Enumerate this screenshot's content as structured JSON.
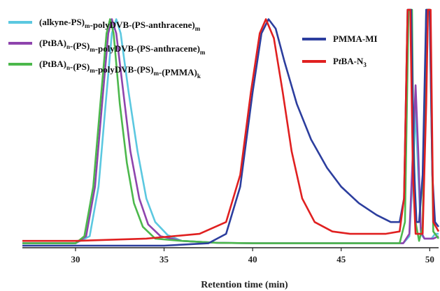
{
  "chart_data": {
    "type": "line",
    "xlabel": "Retention time (min)",
    "ylabel": "",
    "xlim": [
      27,
      50.5
    ],
    "ylim": [
      0,
      1.0
    ],
    "x_ticks": [
      "30",
      "35",
      "40",
      "45",
      "50"
    ],
    "x_tick_values": [
      30,
      35,
      40,
      45,
      50
    ],
    "grid": false,
    "legend_position": "top",
    "series": [
      {
        "name": "(alkyne-PS)m-polyDVB-(PS-anthracene)m",
        "legend_parts": [
          [
            "(alkyne-PS)",
            ""
          ],
          [
            "m",
            "sub"
          ],
          [
            "-polyDVB-(PS-anthracene)",
            ""
          ],
          [
            "m",
            "sub"
          ]
        ],
        "color": "#5bc8e0",
        "points": [
          [
            27,
            0.01
          ],
          [
            30,
            0.01
          ],
          [
            30.8,
            0.04
          ],
          [
            31.3,
            0.25
          ],
          [
            31.7,
            0.6
          ],
          [
            32.05,
            0.9
          ],
          [
            32.3,
            0.96
          ],
          [
            32.55,
            0.9
          ],
          [
            33,
            0.65
          ],
          [
            33.5,
            0.4
          ],
          [
            34,
            0.2
          ],
          [
            34.5,
            0.1
          ],
          [
            35.2,
            0.045
          ],
          [
            36,
            0.02
          ],
          [
            38,
            0.012
          ],
          [
            40,
            0.01
          ],
          [
            45,
            0.01
          ],
          [
            48.5,
            0.01
          ],
          [
            48.85,
            0.04
          ],
          [
            49.05,
            0.3
          ],
          [
            49.2,
            0.58
          ],
          [
            49.35,
            0.3
          ],
          [
            49.5,
            0.05
          ],
          [
            49.7,
            0.03
          ],
          [
            50.1,
            0.03
          ],
          [
            50.3,
            0.05
          ],
          [
            50.5,
            0.05
          ]
        ]
      },
      {
        "name": "(PtBA)n-(PS)m-polyDVB-(PS-anthracene)m",
        "legend_parts": [
          [
            "(PtBA)",
            ""
          ],
          [
            "n",
            "sub"
          ],
          [
            "-(PS)",
            ""
          ],
          [
            "m",
            "sub"
          ],
          [
            "-polyDVB-(PS-anthracene)",
            ""
          ],
          [
            "m",
            "sub"
          ]
        ],
        "color": "#8e44ad",
        "points": [
          [
            27,
            0.01
          ],
          [
            30,
            0.01
          ],
          [
            30.6,
            0.04
          ],
          [
            31.1,
            0.25
          ],
          [
            31.5,
            0.6
          ],
          [
            31.85,
            0.9
          ],
          [
            32.05,
            0.96
          ],
          [
            32.3,
            0.9
          ],
          [
            32.7,
            0.65
          ],
          [
            33.1,
            0.4
          ],
          [
            33.6,
            0.2
          ],
          [
            34.1,
            0.09
          ],
          [
            34.8,
            0.04
          ],
          [
            36,
            0.02
          ],
          [
            38,
            0.012
          ],
          [
            40,
            0.01
          ],
          [
            45,
            0.01
          ],
          [
            48.5,
            0.01
          ],
          [
            48.85,
            0.05
          ],
          [
            49.05,
            0.4
          ],
          [
            49.2,
            0.68
          ],
          [
            49.35,
            0.4
          ],
          [
            49.5,
            0.06
          ],
          [
            49.7,
            0.03
          ],
          [
            50.2,
            0.03
          ],
          [
            50.5,
            0.04
          ]
        ]
      },
      {
        "name": "(PtBA)n-(PS)m-polyDVB-(PS)m-(PMMA)k",
        "legend_parts": [
          [
            "(PtBA)",
            ""
          ],
          [
            "n",
            "sub"
          ],
          [
            "-(PS)",
            ""
          ],
          [
            "m",
            "sub"
          ],
          [
            "-polyDVB-(PS)",
            ""
          ],
          [
            "m",
            "sub"
          ],
          [
            "-(PMMA)",
            ""
          ],
          [
            "k",
            "sub"
          ]
        ],
        "color": "#4cb84c",
        "points": [
          [
            27,
            0.01
          ],
          [
            30,
            0.01
          ],
          [
            30.5,
            0.04
          ],
          [
            31,
            0.25
          ],
          [
            31.4,
            0.6
          ],
          [
            31.75,
            0.9
          ],
          [
            31.95,
            0.96
          ],
          [
            32.15,
            0.9
          ],
          [
            32.5,
            0.6
          ],
          [
            32.9,
            0.35
          ],
          [
            33.3,
            0.18
          ],
          [
            33.8,
            0.08
          ],
          [
            34.5,
            0.03
          ],
          [
            36,
            0.02
          ],
          [
            38,
            0.012
          ],
          [
            40,
            0.01
          ],
          [
            45,
            0.01
          ],
          [
            48.3,
            0.01
          ],
          [
            48.6,
            0.1
          ],
          [
            48.8,
            1.0
          ],
          [
            49.0,
            1.0
          ],
          [
            49.05,
            0.6
          ],
          [
            49.2,
            0.1
          ],
          [
            49.4,
            0.02
          ],
          [
            49.6,
            0.08
          ],
          [
            49.8,
            1.0
          ],
          [
            50.0,
            1.0
          ],
          [
            50.2,
            0.06
          ],
          [
            50.5,
            0.03
          ]
        ]
      },
      {
        "name": "PMMA-MI",
        "legend_parts": [
          [
            "PMMA-MI",
            ""
          ]
        ],
        "color": "#2c3e9e",
        "points": [
          [
            27,
            0.0
          ],
          [
            35,
            0.0
          ],
          [
            37.5,
            0.01
          ],
          [
            38.5,
            0.05
          ],
          [
            39.3,
            0.25
          ],
          [
            40,
            0.65
          ],
          [
            40.5,
            0.9
          ],
          [
            40.9,
            0.96
          ],
          [
            41.3,
            0.92
          ],
          [
            41.8,
            0.78
          ],
          [
            42.5,
            0.6
          ],
          [
            43.3,
            0.45
          ],
          [
            44.2,
            0.33
          ],
          [
            45,
            0.25
          ],
          [
            46,
            0.18
          ],
          [
            47,
            0.13
          ],
          [
            47.8,
            0.1
          ],
          [
            48.3,
            0.1
          ],
          [
            48.55,
            0.2
          ],
          [
            48.75,
            1.0
          ],
          [
            48.95,
            1.0
          ],
          [
            49.1,
            0.35
          ],
          [
            49.25,
            0.1
          ],
          [
            49.4,
            0.1
          ],
          [
            49.6,
            0.3
          ],
          [
            49.8,
            1.0
          ],
          [
            50.0,
            1.0
          ],
          [
            50.15,
            0.3
          ],
          [
            50.3,
            0.1
          ],
          [
            50.5,
            0.08
          ]
        ]
      },
      {
        "name": "PtBA-N3",
        "legend_parts": [
          [
            "P",
            ""
          ],
          [
            "t",
            "ital"
          ],
          [
            "BA-N",
            ""
          ],
          [
            "3",
            "sub"
          ]
        ],
        "color": "#e02020",
        "points": [
          [
            27,
            0.02
          ],
          [
            30,
            0.02
          ],
          [
            34,
            0.03
          ],
          [
            37,
            0.05
          ],
          [
            38.5,
            0.1
          ],
          [
            39.3,
            0.3
          ],
          [
            39.9,
            0.65
          ],
          [
            40.4,
            0.9
          ],
          [
            40.75,
            0.96
          ],
          [
            41.2,
            0.88
          ],
          [
            41.7,
            0.65
          ],
          [
            42.2,
            0.4
          ],
          [
            42.8,
            0.2
          ],
          [
            43.5,
            0.1
          ],
          [
            44.5,
            0.06
          ],
          [
            45.5,
            0.05
          ],
          [
            47.5,
            0.05
          ],
          [
            48.3,
            0.06
          ],
          [
            48.55,
            0.2
          ],
          [
            48.75,
            1.0
          ],
          [
            48.9,
            1.0
          ],
          [
            49.05,
            0.3
          ],
          [
            49.2,
            0.05
          ],
          [
            49.6,
            0.05
          ],
          [
            49.8,
            0.6
          ],
          [
            49.9,
            1.0
          ],
          [
            50.05,
            1.0
          ],
          [
            50.2,
            0.1
          ],
          [
            50.5,
            0.06
          ]
        ]
      }
    ]
  }
}
